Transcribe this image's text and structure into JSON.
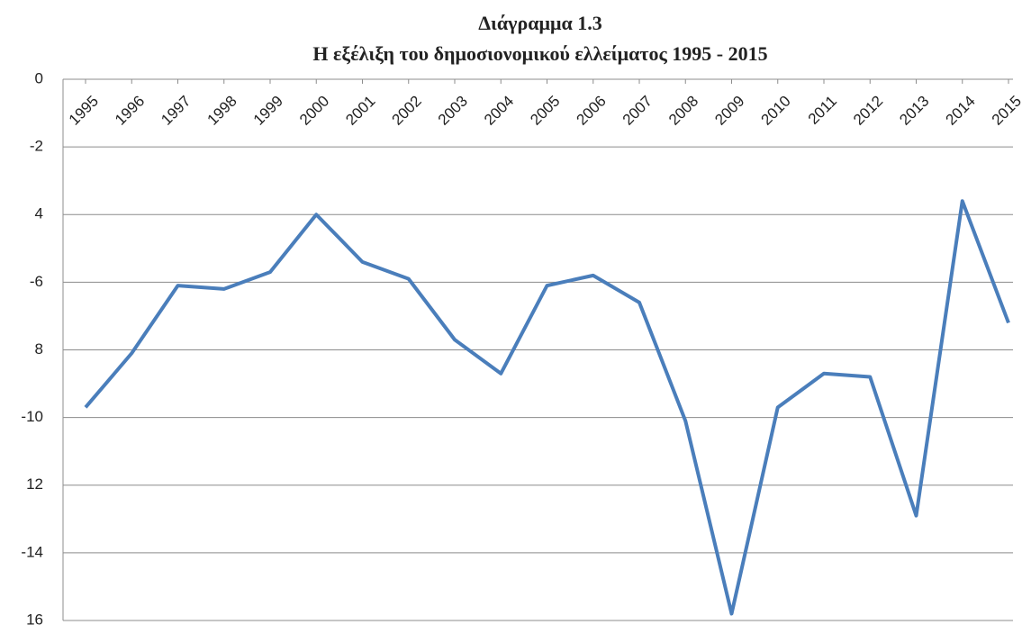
{
  "chart_data": {
    "type": "line",
    "title": "Διάγραμμα 1.3",
    "subtitle": "Η εξέλιξη του δημοσιονομικού ελλείματος 1995 - 2015",
    "categories": [
      "1995",
      "1996",
      "1997",
      "1998",
      "1999",
      "2000",
      "2001",
      "2002",
      "2003",
      "2004",
      "2005",
      "2006",
      "2007",
      "2008",
      "2009",
      "2010",
      "2011",
      "2012",
      "2013",
      "2014",
      "2015"
    ],
    "series": [
      {
        "color": "#4a7ebb",
        "values": [
          -9.7,
          -8.1,
          -6.1,
          -6.2,
          -5.7,
          -4.0,
          -5.4,
          -5.9,
          -7.7,
          -8.7,
          -6.1,
          -5.8,
          -6.6,
          -10.1,
          -15.8,
          -9.7,
          -8.7,
          -8.8,
          -12.9,
          -3.6,
          -7.2
        ]
      }
    ],
    "ylim": [
      -16,
      0
    ],
    "yticks": [
      {
        "value": -16,
        "label": "16"
      },
      -14,
      {
        "value": -12,
        "label": "12"
      },
      -10,
      {
        "value": -8,
        "label": "8"
      },
      -6,
      {
        "value": -4,
        "label": "4"
      },
      -2,
      0
    ],
    "grid": true
  }
}
